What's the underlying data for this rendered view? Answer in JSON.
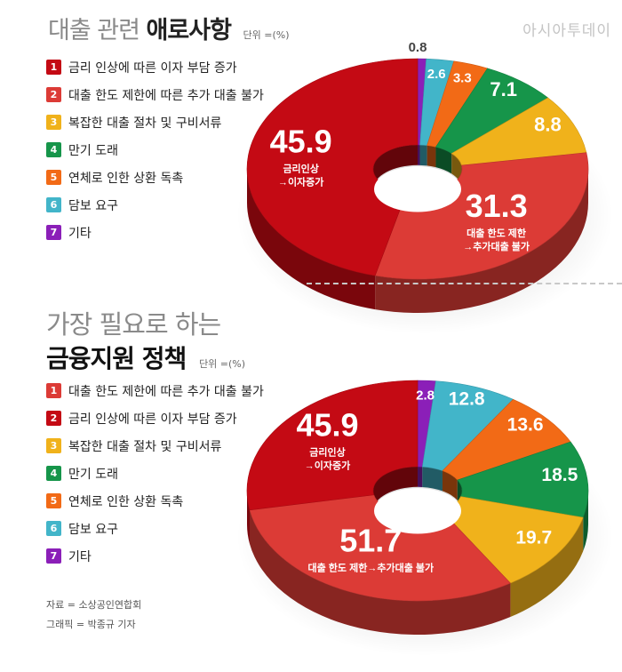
{
  "brand": "아시아투데이",
  "unit_label": "단위 =(%)",
  "colors": {
    "red_dark": "#c40a14",
    "red_light": "#dc3b36",
    "yellow": "#f0b21b",
    "green": "#16954a",
    "orange": "#f26a16",
    "teal": "#42b5c9",
    "purple": "#8b1fb8"
  },
  "section1": {
    "title_light": "대출 관련",
    "title_bold": "애로사항",
    "legend": [
      {
        "num": "1",
        "label": "금리 인상에 따른 이자 부담 증가",
        "color": "#c40a14"
      },
      {
        "num": "2",
        "label": "대출 한도 제한에 따른 추가 대출 불가",
        "color": "#dc3b36"
      },
      {
        "num": "3",
        "label": "복잡한 대출 절차 및 구비서류",
        "color": "#f0b21b"
      },
      {
        "num": "4",
        "label": "만기 도래",
        "color": "#16954a"
      },
      {
        "num": "5",
        "label": "연체로 인한 상환 독촉",
        "color": "#f26a16"
      },
      {
        "num": "6",
        "label": "담보 요구",
        "color": "#42b5c9"
      },
      {
        "num": "7",
        "label": "기타",
        "color": "#8b1fb8"
      }
    ]
  },
  "section2": {
    "title_light": "가장 필요로 하는",
    "title_bold": "금융지원 정책",
    "legend": [
      {
        "num": "1",
        "label": "대출 한도 제한에 따른 추가 대출 불가",
        "color": "#dc3b36"
      },
      {
        "num": "2",
        "label": "금리 인상에 따른 이자 부담 증가",
        "color": "#c40a14"
      },
      {
        "num": "3",
        "label": "복잡한 대출 절차 및 구비서류",
        "color": "#f0b21b"
      },
      {
        "num": "4",
        "label": "만기 도래",
        "color": "#16954a"
      },
      {
        "num": "5",
        "label": "연체로 인한 상환 독촉",
        "color": "#f26a16"
      },
      {
        "num": "6",
        "label": "담보 요구",
        "color": "#42b5c9"
      },
      {
        "num": "7",
        "label": "기타",
        "color": "#8b1fb8"
      }
    ]
  },
  "source": "자료 = 소상공인연합회",
  "graphic": "그래픽 = 박종규 기자",
  "chart_data": [
    {
      "type": "pie",
      "title": "대출 관련 애로사항",
      "unit": "%",
      "slices": [
        {
          "label": "기타",
          "value": 0.8,
          "color": "#8b1fb8",
          "value_text": "0.8"
        },
        {
          "label": "담보 요구",
          "value": 2.6,
          "color": "#42b5c9",
          "value_text": "2.6"
        },
        {
          "label": "연체로 인한 상환 독촉",
          "value": 3.3,
          "color": "#f26a16",
          "value_text": "3.3"
        },
        {
          "label": "만기 도래",
          "value": 7.1,
          "color": "#16954a",
          "value_text": "7.1"
        },
        {
          "label": "복잡한 대출 절차 및 구비서류",
          "value": 8.8,
          "color": "#f0b21b",
          "value_text": "8.8"
        },
        {
          "label": "대출 한도 제한에 따른 추가 대출 불가",
          "value": 31.3,
          "color": "#dc3b36",
          "value_text": "31.3",
          "sub1": "대출 한도 제한",
          "sub2": "→추가대출 불가"
        },
        {
          "label": "금리 인상에 따른 이자 부담 증가",
          "value": 45.9,
          "color": "#c40a14",
          "value_text": "45.9",
          "sub1": "금리인상",
          "sub2": "→이자증가"
        }
      ]
    },
    {
      "type": "pie",
      "title": "가장 필요로 하는 금융지원 정책",
      "unit": "%",
      "slices": [
        {
          "label": "기타",
          "value": 2.8,
          "color": "#8b1fb8",
          "value_text": "2.8"
        },
        {
          "label": "담보 요구",
          "value": 12.8,
          "color": "#42b5c9",
          "value_text": "12.8"
        },
        {
          "label": "연체로 인한 상환 독촉",
          "value": 13.6,
          "color": "#f26a16",
          "value_text": "13.6"
        },
        {
          "label": "만기 도래",
          "value": 18.5,
          "color": "#16954a",
          "value_text": "18.5"
        },
        {
          "label": "복잡한 대출 절차 및 구비서류",
          "value": 19.7,
          "color": "#f0b21b",
          "value_text": "19.7"
        },
        {
          "label": "대출 한도 제한에 따른 추가 대출 불가",
          "value": 51.7,
          "color": "#dc3b36",
          "value_text": "51.7",
          "sub1": "대출 한도 제한→추가대출 불가"
        },
        {
          "label": "금리 인상에 따른 이자 부담 증가",
          "value": 45.9,
          "color": "#c40a14",
          "value_text": "45.9",
          "sub1": "금리인상",
          "sub2": "→이자증가"
        }
      ]
    }
  ]
}
